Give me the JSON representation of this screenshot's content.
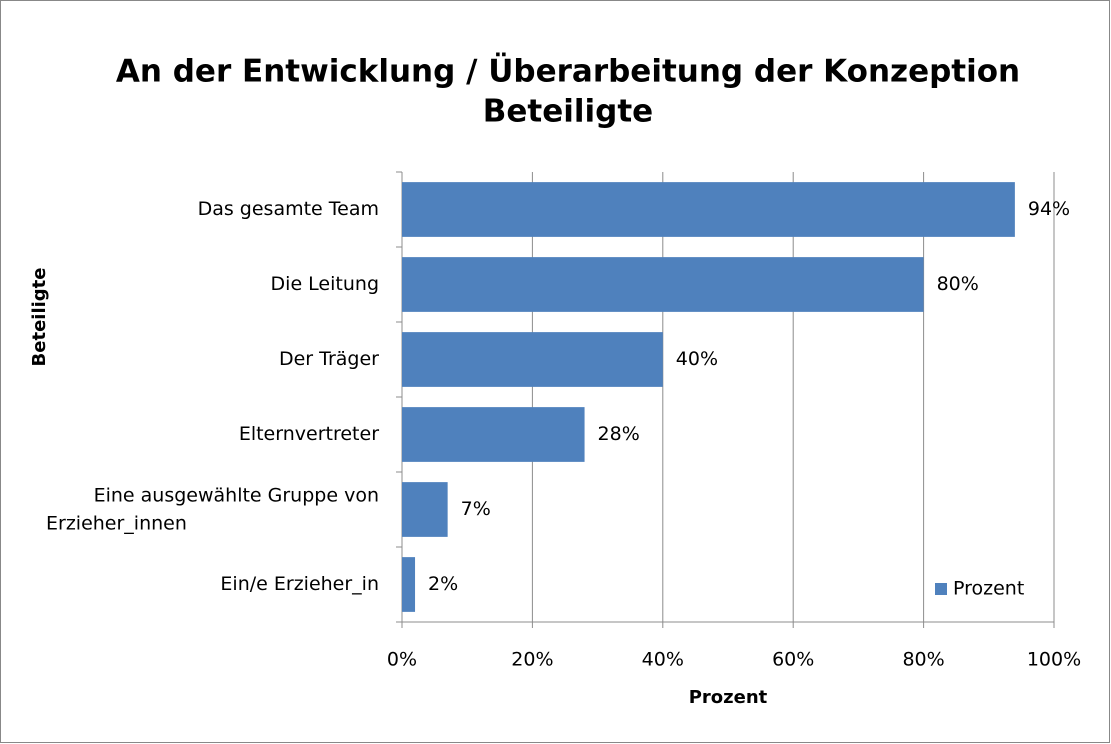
{
  "chart_data": {
    "type": "bar",
    "orientation": "horizontal",
    "title": [
      "An der Entwicklung / Überarbeitung der Konzeption",
      "Beteiligte"
    ],
    "x_label": "Prozent",
    "y_label": "Beteiligte",
    "categories": [
      "Das gesamte Team",
      "Die Leitung",
      "Der Träger",
      "Elternvertreter",
      "Eine ausgewählte Gruppe von Erzieher_innen",
      "Ein/e Erzieher_in"
    ],
    "series": [
      {
        "name": "Prozent",
        "color": "#4f81bd",
        "values": [
          94,
          80,
          40,
          28,
          7,
          2
        ],
        "value_labels": [
          "94%",
          "80%",
          "40%",
          "28%",
          "7%",
          "2%"
        ]
      }
    ],
    "xlim": [
      0,
      100
    ],
    "xticks": [
      {
        "value": 0,
        "label": "0%"
      },
      {
        "value": 20,
        "label": "20%"
      },
      {
        "value": 40,
        "label": "40%"
      },
      {
        "value": 60,
        "label": "60%"
      },
      {
        "value": 80,
        "label": "80%"
      },
      {
        "value": 100,
        "label": "100%"
      }
    ],
    "grid": true,
    "legend": "bottom-right"
  }
}
